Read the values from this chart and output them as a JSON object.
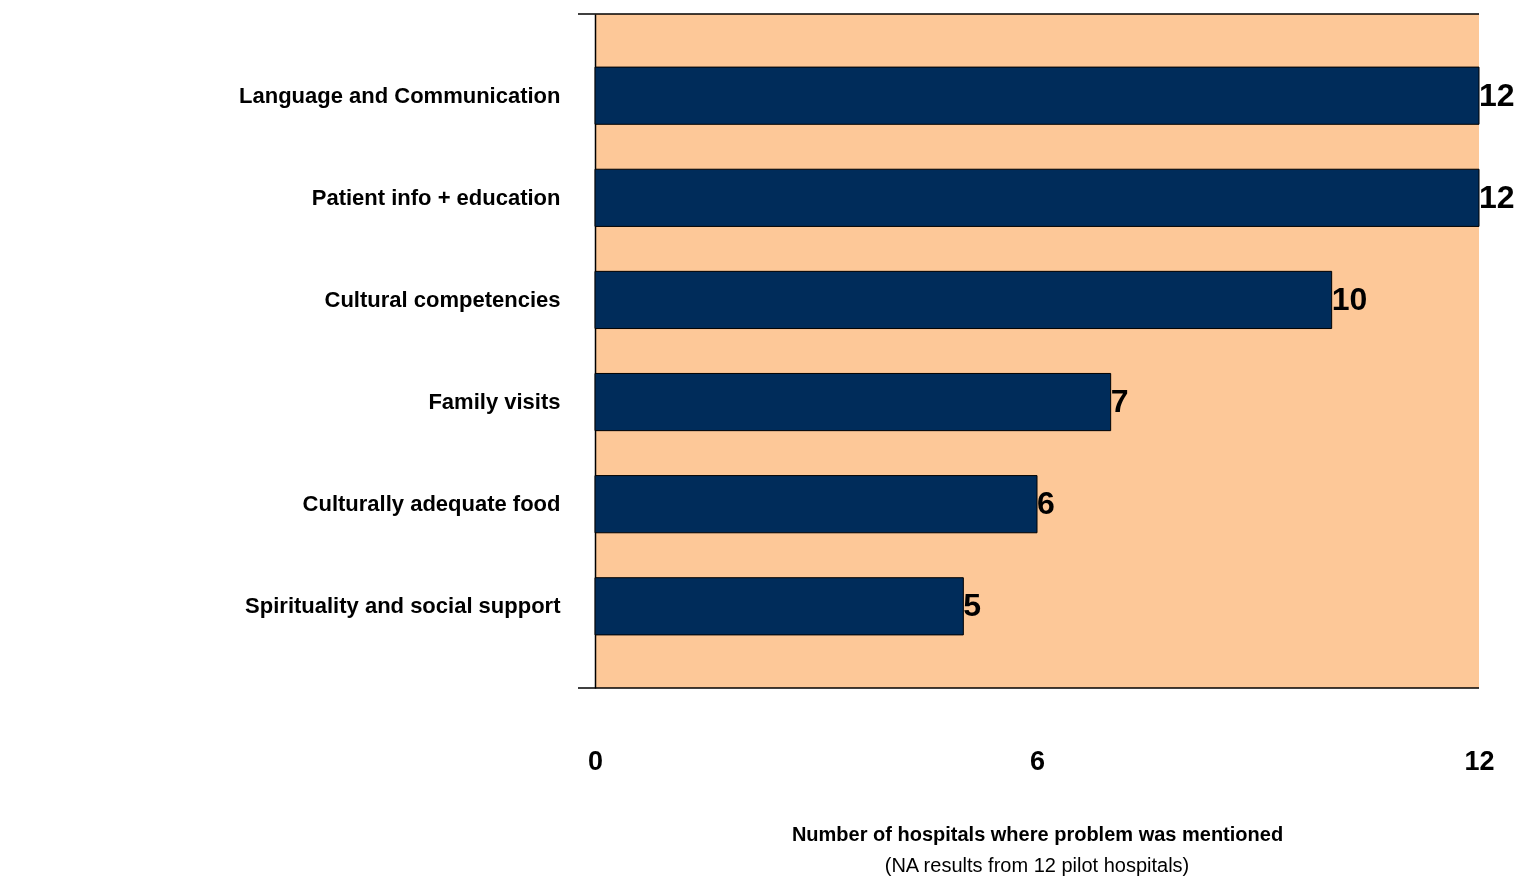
{
  "chart_data": {
    "type": "bar",
    "orientation": "horizontal",
    "categories": [
      "Language and Communication",
      "Patient info + education",
      "Cultural competencies",
      "Family visits",
      "Culturally adequate food",
      "Spirituality and social support"
    ],
    "values": [
      12,
      12,
      10,
      7,
      6,
      5
    ],
    "color": "#002c5a",
    "data_labels": true,
    "xlim": [
      0,
      12
    ],
    "xticks": [
      0,
      6,
      12
    ],
    "grid": false,
    "xlabel": "Number of hospitals where problem was mentioned",
    "annotations": [
      "(NA results from 12 pilot hospitals)"
    ]
  }
}
